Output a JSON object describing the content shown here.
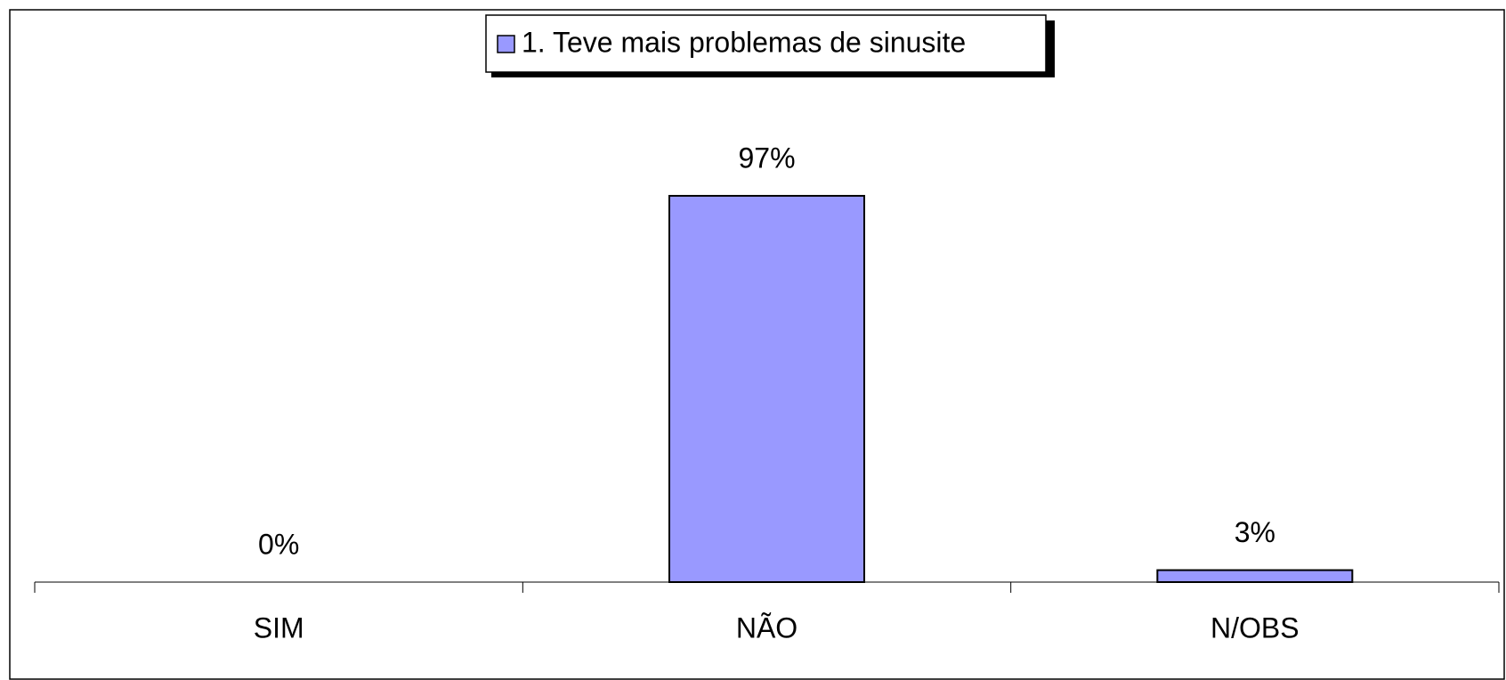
{
  "chart_data": {
    "type": "bar",
    "categories": [
      "SIM",
      "NÃO",
      "N/OBS"
    ],
    "series": [
      {
        "name": "1. Teve mais problemas de sinusite",
        "color": "#9999ff",
        "values": [
          0,
          97,
          3
        ],
        "value_labels": [
          "0%",
          "97%",
          "3%"
        ]
      }
    ],
    "legend": "top"
  }
}
